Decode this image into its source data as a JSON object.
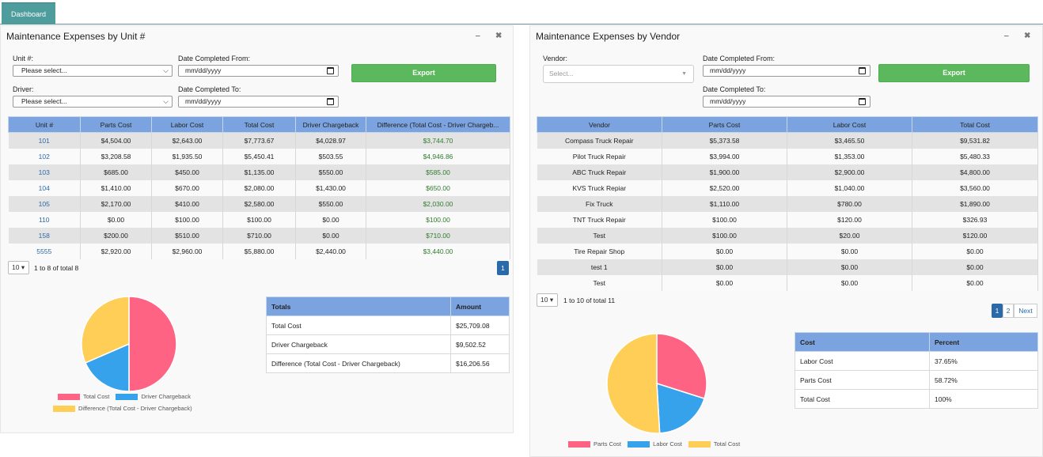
{
  "nav": {
    "tab_label": "Dashboard"
  },
  "unit_panel": {
    "title": "Maintenance Expenses by Unit #",
    "minimize": "‒",
    "close": "✖",
    "filters": {
      "unit_label": "Unit #:",
      "unit_value": "Please select...",
      "driver_label": "Driver:",
      "driver_value": "Please select...",
      "from_label": "Date Completed From:",
      "from_value": "mm/dd/yyyy",
      "to_label": "Date Completed To:",
      "to_value": "mm/dd/yyyy",
      "export_label": "Export"
    },
    "columns": [
      "Unit #",
      "Parts Cost",
      "Labor Cost",
      "Total Cost",
      "Driver Chargeback",
      "Difference (Total Cost - Driver Chargeb..."
    ],
    "rows": [
      [
        "101",
        "$4,504.00",
        "$2,643.00",
        "$7,773.67",
        "$4,028.97",
        "$3,744.70"
      ],
      [
        "102",
        "$3,208.58",
        "$1,935.50",
        "$5,450.41",
        "$503.55",
        "$4,946.86"
      ],
      [
        "103",
        "$685.00",
        "$450.00",
        "$1,135.00",
        "$550.00",
        "$585.00"
      ],
      [
        "104",
        "$1,410.00",
        "$670.00",
        "$2,080.00",
        "$1,430.00",
        "$650.00"
      ],
      [
        "105",
        "$2,170.00",
        "$410.00",
        "$2,580.00",
        "$550.00",
        "$2,030.00"
      ],
      [
        "110",
        "$0.00",
        "$100.00",
        "$100.00",
        "$0.00",
        "$100.00"
      ],
      [
        "158",
        "$200.00",
        "$510.00",
        "$710.00",
        "$0.00",
        "$710.00"
      ],
      [
        "5555",
        "$2,920.00",
        "$2,960.00",
        "$5,880.00",
        "$2,440.00",
        "$3,440.00"
      ]
    ],
    "pager": {
      "page_size": "10",
      "info": "1 to 8 of total 8",
      "pages": [
        "1"
      ]
    },
    "totals": {
      "headers": [
        "Totals",
        "Amount"
      ],
      "rows": [
        [
          "Total Cost",
          "$25,709.08"
        ],
        [
          "Driver Chargeback",
          "$9,502.52"
        ],
        [
          "Difference (Total Cost - Driver Chargeback)",
          "$16,206.56"
        ]
      ]
    },
    "pie": {
      "legend": [
        "Total Cost",
        "Driver Chargeback",
        "Difference (Total Cost - Driver Chargeback)"
      ],
      "values": [
        25709.08,
        9502.52,
        16206.56
      ],
      "colors": [
        "#ff6384",
        "#36a2eb",
        "#ffce56"
      ]
    }
  },
  "vendor_panel": {
    "title": "Maintenance Expenses by Vendor",
    "minimize": "‒",
    "close": "✖",
    "filters": {
      "vendor_label": "Vendor:",
      "vendor_placeholder": "Select...",
      "from_label": "Date Completed From:",
      "from_value": "mm/dd/yyyy",
      "to_label": "Date Completed To:",
      "to_value": "mm/dd/yyyy",
      "export_label": "Export"
    },
    "columns": [
      "Vendor",
      "Parts Cost",
      "Labor Cost",
      "Total Cost"
    ],
    "rows": [
      [
        "Compass Truck Repair",
        "$5,373.58",
        "$3,465.50",
        "$9,531.82"
      ],
      [
        "Pilot Truck Repair",
        "$3,994.00",
        "$1,353.00",
        "$5,480.33"
      ],
      [
        "ABC Truck Repair",
        "$1,900.00",
        "$2,900.00",
        "$4,800.00"
      ],
      [
        "KVS Truck Repiar",
        "$2,520.00",
        "$1,040.00",
        "$3,560.00"
      ],
      [
        "Fix Truck",
        "$1,110.00",
        "$780.00",
        "$1,890.00"
      ],
      [
        "TNT Truck Repair",
        "$100.00",
        "$120.00",
        "$326.93"
      ],
      [
        "Test",
        "$100.00",
        "$20.00",
        "$120.00"
      ],
      [
        "Tire Repair Shop",
        "$0.00",
        "$0.00",
        "$0.00"
      ],
      [
        "test 1",
        "$0.00",
        "$0.00",
        "$0.00"
      ],
      [
        "Test",
        "$0.00",
        "$0.00",
        "$0.00"
      ]
    ],
    "pager": {
      "page_size": "10",
      "info": "1 to 10 of total 11",
      "pages": [
        "1",
        "2"
      ],
      "next": "Next"
    },
    "cost": {
      "headers": [
        "Cost",
        "Percent"
      ],
      "rows": [
        [
          "Labor Cost",
          "37.65%"
        ],
        [
          "Parts Cost",
          "58.72%"
        ],
        [
          "Total Cost",
          "100%"
        ]
      ]
    },
    "pie": {
      "legend": [
        "Parts Cost",
        "Labor Cost",
        "Total Cost"
      ],
      "values": [
        58.72,
        37.65,
        100
      ],
      "colors": [
        "#ff6384",
        "#36a2eb",
        "#ffce56"
      ]
    }
  }
}
